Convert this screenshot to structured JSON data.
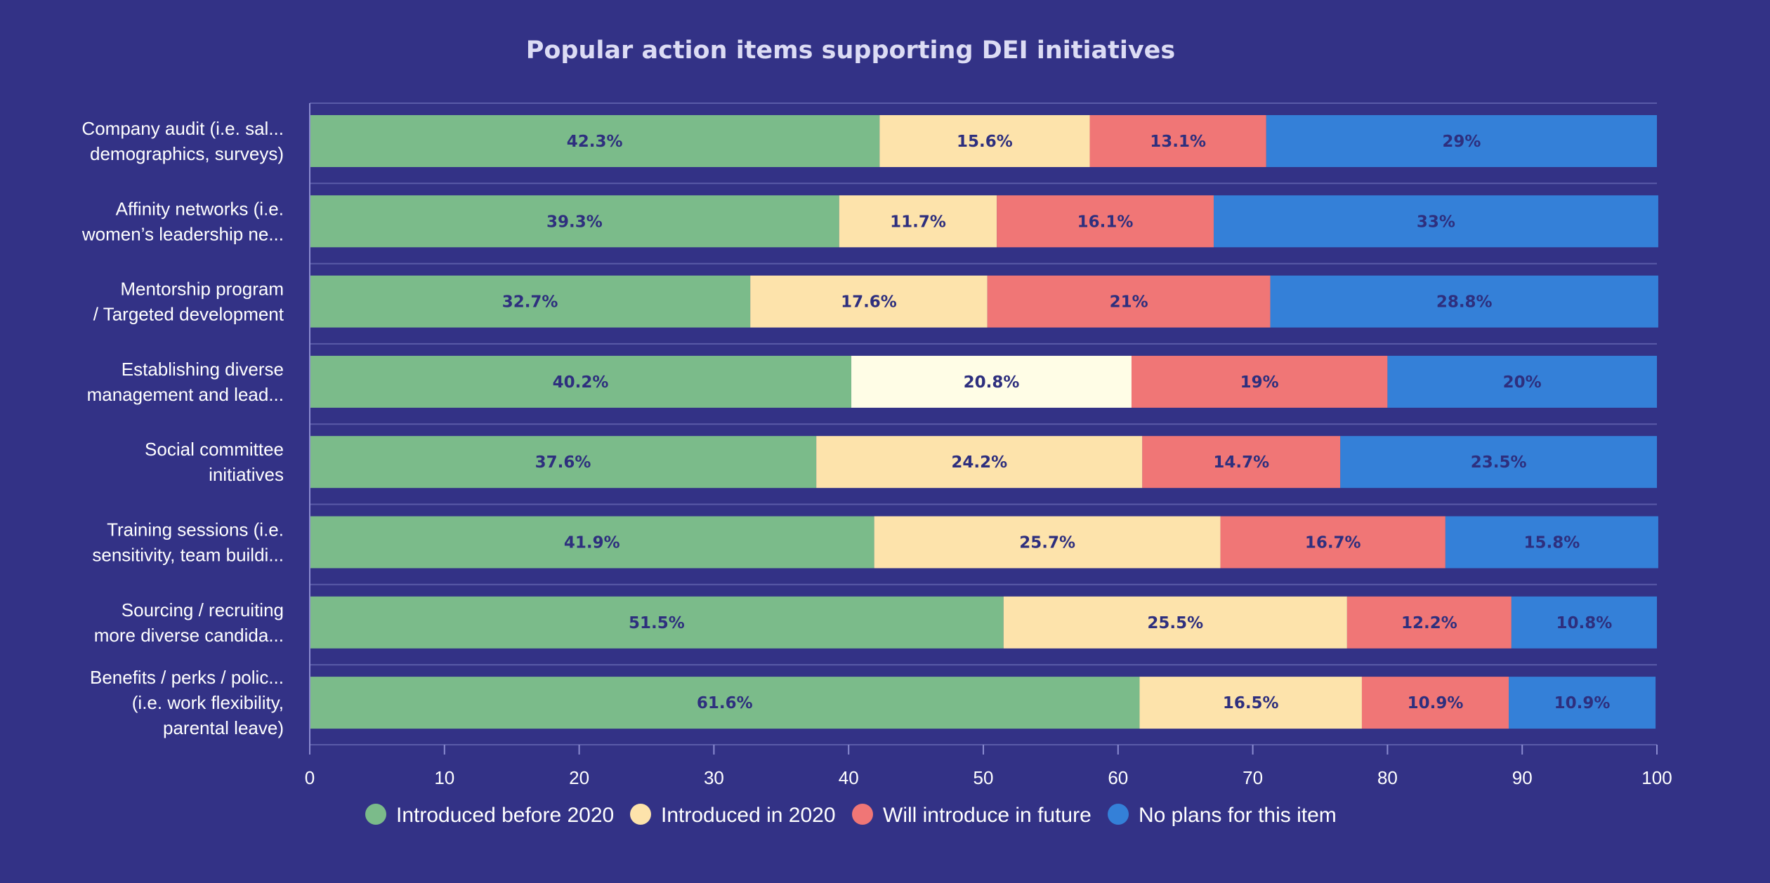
{
  "chart_data": {
    "type": "bar",
    "orientation": "horizontal",
    "stacked": true,
    "title": "Popular action items supporting DEI initiatives",
    "xlabel": "",
    "ylabel": "",
    "xlim": [
      0,
      100
    ],
    "xticks": [
      "0",
      "10",
      "20",
      "30",
      "40",
      "50",
      "60",
      "70",
      "80",
      "90",
      "100"
    ],
    "grid": false,
    "legend_position": "bottom",
    "categories": [
      [
        "Company audit (i.e. sal...",
        "demographics, surveys)"
      ],
      [
        "Affinity networks (i.e.",
        "women’s leadership ne..."
      ],
      [
        "Mentorship program",
        "/ Targeted development"
      ],
      [
        "Establishing diverse",
        "management and lead..."
      ],
      [
        "Social committee",
        "initiatives"
      ],
      [
        "Training sessions (i.e.",
        "sensitivity, team buildi..."
      ],
      [
        "Sourcing / recruiting",
        "more diverse candida..."
      ],
      [
        "Benefits / perks / polic...",
        "(i.e. work flexibility,",
        "parental leave)"
      ]
    ],
    "series": [
      {
        "name": "Introduced before 2020",
        "color": "#7bbb8a",
        "values": [
          42.3,
          39.3,
          32.7,
          40.2,
          37.6,
          41.9,
          51.5,
          61.6
        ],
        "labels": [
          "42.3%",
          "39.3%",
          "32.7%",
          "40.2%",
          "37.6%",
          "41.9%",
          "51.5%",
          "61.6%"
        ]
      },
      {
        "name": "Introduced in 2020",
        "color": "#fde3ab",
        "values": [
          15.6,
          11.7,
          17.6,
          20.8,
          24.2,
          25.7,
          25.5,
          16.5
        ],
        "labels": [
          "15.6%",
          "11.7%",
          "17.6%",
          "20.8%",
          "24.2%",
          "25.7%",
          "25.5%",
          "16.5%"
        ]
      },
      {
        "name": "Will introduce in future",
        "color": "#f07676",
        "values": [
          13.1,
          16.1,
          21,
          19,
          14.7,
          16.7,
          12.2,
          10.9
        ],
        "labels": [
          "13.1%",
          "16.1%",
          "21%",
          "19%",
          "14.7%",
          "16.7%",
          "12.2%",
          "10.9%"
        ]
      },
      {
        "name": "No plans for this item",
        "color": "#3480d8",
        "values": [
          29,
          33,
          28.8,
          20,
          23.5,
          15.8,
          10.8,
          10.9
        ],
        "labels": [
          "29%",
          "33%",
          "28.8%",
          "20%",
          "23.5%",
          "15.8%",
          "10.8%",
          "10.9%"
        ]
      }
    ],
    "highlight": {
      "category_index": 3,
      "series_index": 1,
      "color": "#fffde6"
    }
  }
}
